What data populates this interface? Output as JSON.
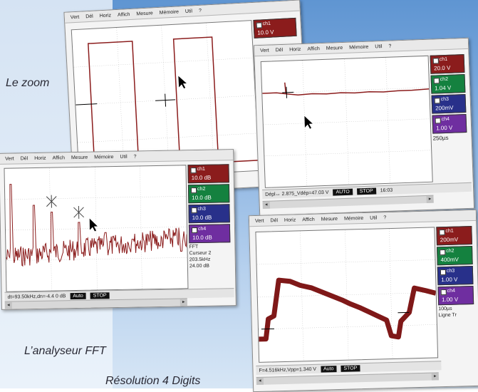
{
  "captions": {
    "zoom": "Le zoom",
    "fft": "L’analyseur FFT",
    "resolution": "Résolution 4 Digits"
  },
  "menu": [
    "Vert",
    "Dél",
    "Horiz",
    "Affich",
    "Mesure",
    "Mémoire",
    "Util",
    "?"
  ],
  "window_zoom": {
    "channels": [
      {
        "name": "ch1",
        "value": "10.0 V"
      }
    ]
  },
  "window_mid": {
    "channels": [
      {
        "name": "ch1",
        "value": "20.0 V"
      },
      {
        "name": "ch2",
        "value": "1.04 V"
      },
      {
        "name": "ch3",
        "value": "200mV"
      },
      {
        "name": "ch4",
        "value": "1.00 V"
      }
    ],
    "timebase": "250µs",
    "status_text": "Dépl↔  2.875_Vdép=47.03 V",
    "auto_label": "AUTO",
    "stop_label": "STOP",
    "time_label": "16:03"
  },
  "window_fft": {
    "channels": [
      {
        "name": "ch1",
        "value": "10.0 dB"
      },
      {
        "name": "ch2",
        "value": "10.0 dB"
      },
      {
        "name": "ch3",
        "value": "10.0 dB"
      },
      {
        "name": "ch4",
        "value": "10.0 dB"
      }
    ],
    "cursor_label": "Curseur 2",
    "cursor_freq": "203.5kHz",
    "cursor_db": "24.00 dB",
    "status_text": "dt=93.50kHz,dn=-4.4 0 dB",
    "auto_label": "Auto",
    "stop_label": "STOP",
    "mode_label": "FFT"
  },
  "window_res": {
    "channels": [
      {
        "name": "ch1",
        "value": "200mV"
      },
      {
        "name": "ch2",
        "value": "400mV"
      },
      {
        "name": "ch3",
        "value": "1.00 V"
      },
      {
        "name": "ch4",
        "value": "1.00 V"
      }
    ],
    "timebase": "100µs",
    "status_text": "F=4.516kHz,Vpp=1.340 V",
    "auto_label": "Auto",
    "stop_label": "STOP",
    "trigger_label": "Ligne Tr"
  },
  "colors": {
    "trace": "#8b1c1c",
    "ch1": "#8b1c1c",
    "ch2": "#14813f",
    "ch3": "#28308a",
    "ch4": "#6f2ea0"
  }
}
